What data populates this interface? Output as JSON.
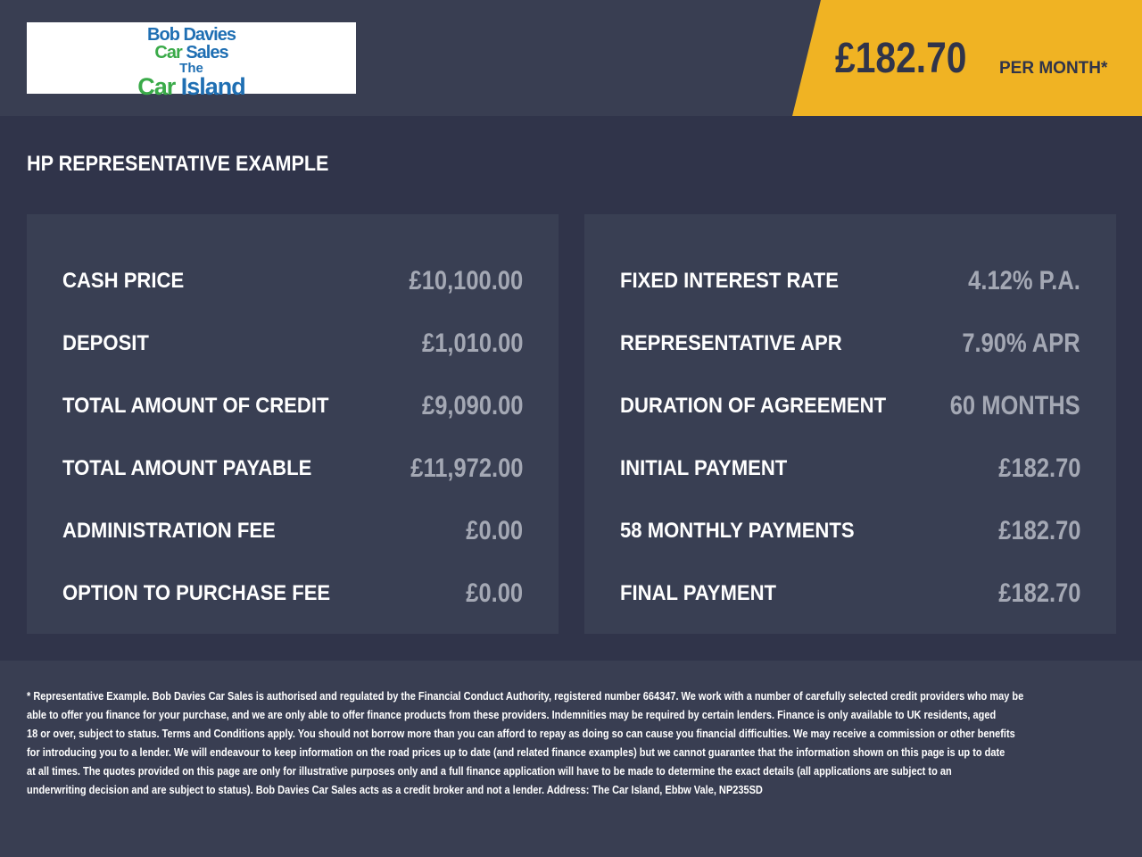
{
  "logo": {
    "line1": "Bob Davies",
    "line2a": "Car",
    "line2b": "Sales",
    "line3": "The",
    "line4a": "Car",
    "line4b": "Island"
  },
  "header": {
    "price": "£182.70",
    "per_month": "PER MONTH*",
    "accent": "#f0b323"
  },
  "title": "HP REPRESENTATIVE EXAMPLE",
  "left": [
    {
      "label": "CASH PRICE",
      "value": "£10,100.00"
    },
    {
      "label": "DEPOSIT",
      "value": "£1,010.00"
    },
    {
      "label": "TOTAL AMOUNT OF CREDIT",
      "value": "£9,090.00"
    },
    {
      "label": "TOTAL AMOUNT PAYABLE",
      "value": "£11,972.00"
    },
    {
      "label": "ADMINISTRATION FEE",
      "value": "£0.00"
    },
    {
      "label": "OPTION TO PURCHASE FEE",
      "value": "£0.00"
    }
  ],
  "right": [
    {
      "label": "FIXED INTEREST RATE",
      "value": "4.12% P.A."
    },
    {
      "label": "REPRESENTATIVE APR",
      "value": "7.90% APR"
    },
    {
      "label": "DURATION OF AGREEMENT",
      "value": "60 MONTHS"
    },
    {
      "label": "INITIAL PAYMENT",
      "value": "£182.70"
    },
    {
      "label": "58 MONTHLY PAYMENTS",
      "value": "£182.70"
    },
    {
      "label": "FINAL PAYMENT",
      "value": "£182.70"
    }
  ],
  "disclaimer": [
    "* Representative Example. Bob Davies Car Sales is authorised and regulated by the Financial Conduct Authority, registered number 664347. We work with a number of carefully selected credit providers who may be",
    "able to offer you finance for your purchase, and we are only able to offer finance products from these providers. Indemnities may be required by certain lenders. Finance is only available to UK residents, aged",
    "18 or over, subject to status. Terms and Conditions apply. You should not borrow more than you can afford to repay as doing so can cause you financial difficulties. We may receive a commission or other benefits",
    "for introducing you to a lender. We will endeavour to keep information on the road prices up to date (and related finance examples) but we cannot guarantee that the information shown on this page is up to date",
    "at all times. The quotes provided on this page are only for illustrative purposes only and a full finance application will have to be made to determine the exact details (all applications are subject to an",
    "underwriting decision and are subject to status). Bob Davies Car Sales acts as a credit broker and not a lender. Address: The Car Island, Ebbw Vale, NP235SD"
  ]
}
